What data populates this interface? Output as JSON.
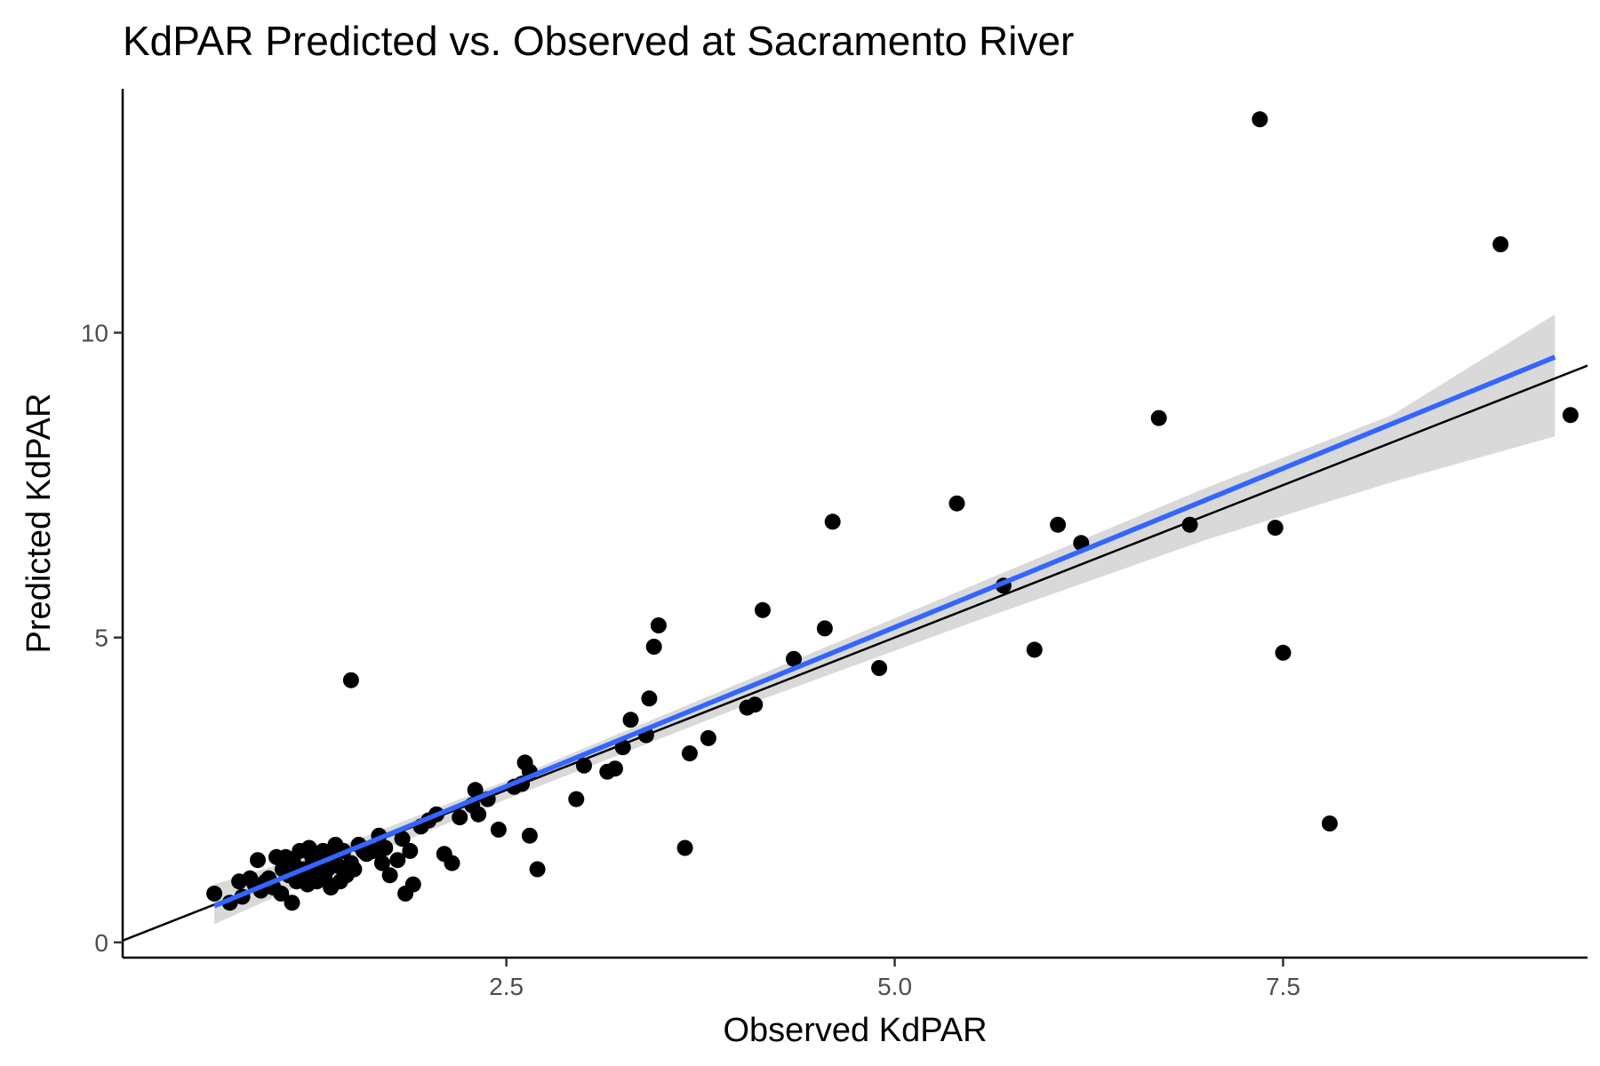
{
  "chart_data": {
    "type": "scatter",
    "title": "KdPAR Predicted vs. Observed at Sacramento River",
    "xlabel": "Observed KdPAR",
    "ylabel": "Predicted KdPAR",
    "xlim": [
      0.03,
      9.46
    ],
    "ylim": [
      -0.25,
      14.0
    ],
    "x_ticks": [
      2.5,
      5.0,
      7.5
    ],
    "x_tick_labels": [
      "2.5",
      "5.0",
      "7.5"
    ],
    "y_ticks": [
      0,
      5,
      10
    ],
    "y_tick_labels": [
      "0",
      "5",
      "10"
    ],
    "grid": false,
    "legend": "none",
    "colors": {
      "points": "#000000",
      "regression_line": "#3366FF",
      "confidence_band": "#d9d9d9",
      "identity_line": "#000000"
    },
    "identity_line": {
      "slope": 1,
      "intercept": 0
    },
    "regression_line": {
      "x_start": 0.62,
      "x_end": 9.25,
      "y_start": 0.6,
      "y_end": 9.6
    },
    "confidence_band": [
      {
        "x": 0.62,
        "lower": 0.3,
        "upper": 0.95
      },
      {
        "x": 1.5,
        "lower": 1.3,
        "upper": 1.65
      },
      {
        "x": 2.5,
        "lower": 2.35,
        "upper": 2.65
      },
      {
        "x": 4.0,
        "lower": 3.85,
        "upper": 4.25
      },
      {
        "x": 5.5,
        "lower": 5.25,
        "upper": 5.85
      },
      {
        "x": 7.0,
        "lower": 6.6,
        "upper": 7.45
      },
      {
        "x": 8.2,
        "lower": 7.55,
        "upper": 8.65
      },
      {
        "x": 9.25,
        "lower": 8.3,
        "upper": 10.3
      }
    ],
    "series": [
      {
        "x": [
          0.62,
          0.72,
          0.78,
          0.8,
          0.85,
          0.88,
          0.9,
          0.92,
          0.95,
          0.97,
          1.0,
          1.02,
          1.05,
          1.06,
          1.08,
          1.1,
          1.12,
          1.13,
          1.15,
          1.17,
          1.18,
          1.2,
          1.22,
          1.23,
          1.25,
          1.27,
          1.28,
          1.3,
          1.32,
          1.33,
          1.35,
          1.37,
          1.38,
          1.4,
          1.42,
          1.43,
          1.45,
          1.47,
          1.5,
          1.52,
          1.55,
          1.58,
          1.6,
          1.65,
          1.68,
          1.7,
          1.72,
          1.75,
          1.8,
          1.83,
          1.85,
          1.88,
          1.9,
          1.95,
          2.0,
          2.05,
          2.1,
          2.15,
          2.2,
          2.28,
          2.3,
          2.32,
          2.38,
          2.45,
          2.55,
          2.6,
          2.62,
          2.65,
          2.65,
          2.7,
          2.95,
          3.0,
          3.15,
          3.2,
          3.25,
          3.3,
          3.4,
          3.42,
          3.45,
          3.48,
          3.65,
          3.68,
          3.8,
          4.05,
          4.1,
          4.15,
          4.35,
          4.55,
          4.6,
          4.9,
          5.4,
          5.7,
          5.9,
          6.05,
          6.2,
          6.7,
          6.9,
          7.35,
          7.45,
          7.5,
          7.8,
          8.9,
          9.35,
          1.5
        ],
        "y": [
          0.8,
          0.65,
          1.0,
          0.75,
          1.05,
          0.95,
          1.35,
          0.85,
          1.0,
          1.05,
          0.9,
          1.4,
          0.8,
          1.2,
          1.4,
          1.1,
          0.65,
          1.3,
          1.0,
          1.5,
          1.05,
          1.2,
          0.95,
          1.55,
          1.4,
          1.1,
          1.0,
          1.3,
          1.5,
          1.05,
          1.2,
          0.9,
          1.45,
          1.6,
          1.25,
          1.0,
          1.5,
          1.1,
          1.3,
          1.2,
          1.6,
          1.5,
          1.45,
          1.5,
          1.75,
          1.3,
          1.55,
          1.1,
          1.35,
          1.7,
          0.8,
          1.5,
          0.95,
          1.9,
          2.0,
          2.1,
          1.45,
          1.3,
          2.05,
          2.25,
          2.5,
          2.1,
          2.35,
          1.85,
          2.55,
          2.6,
          2.95,
          2.8,
          1.75,
          1.2,
          2.35,
          2.9,
          2.8,
          2.85,
          3.2,
          3.65,
          3.4,
          4.0,
          4.85,
          5.2,
          1.55,
          3.1,
          3.35,
          3.85,
          3.9,
          5.45,
          4.65,
          5.15,
          6.9,
          4.5,
          7.2,
          5.85,
          4.8,
          6.85,
          6.55,
          8.6,
          6.85,
          13.5,
          6.8,
          4.75,
          1.95,
          11.45,
          8.65,
          4.3
        ]
      }
    ]
  }
}
